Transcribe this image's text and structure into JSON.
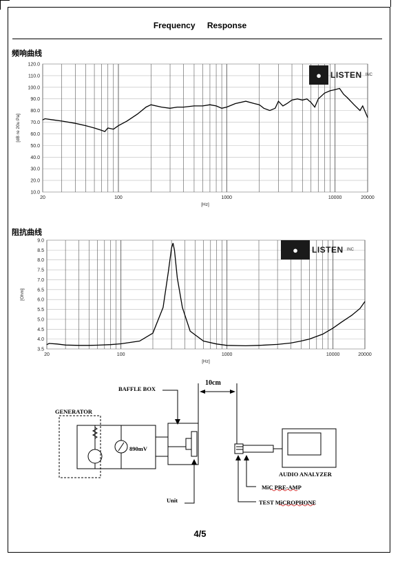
{
  "header": {
    "title": "Frequency Response"
  },
  "freq_section": {
    "label": "频响曲线"
  },
  "imp_section": {
    "label": "阻抗曲线"
  },
  "logo": {
    "name": "LISTEN",
    "suffix": "INC",
    "icon": "listener-head-icon"
  },
  "diagram": {
    "distance": "10cm",
    "baffle_box": "BAFFLE BOX",
    "generator": "GENERATOR",
    "voltage": "890mV",
    "unit": "Unit",
    "audio_analyzer": "AUDIO ANALYZER",
    "mic_preamp": "MiC PRE-AMP",
    "test_mic": "TEST MiCROPHONE"
  },
  "footer": {
    "page": "4/5"
  },
  "chart_data": [
    {
      "type": "line",
      "title": "",
      "xlabel": "[Hz]",
      "ylabel": "[dB re 20u Pa]",
      "xscale": "log",
      "xlim": [
        20,
        20000
      ],
      "ylim": [
        10,
        120
      ],
      "grid": true,
      "x_ticks": [
        "20",
        "100",
        "1000",
        "10000",
        "20000"
      ],
      "y_ticks": [
        "120.0",
        "110.0",
        "100.0",
        "90.0",
        "80.0",
        "70.0",
        "60.0",
        "50.0",
        "40.0",
        "30.0",
        "20.0",
        "10.0"
      ],
      "series": [
        {
          "x": [
            20,
            21,
            25,
            30,
            40,
            50,
            60,
            70,
            75,
            80,
            90,
            100,
            120,
            150,
            180,
            200,
            250,
            300,
            350,
            400,
            500,
            600,
            700,
            800,
            900,
            1000,
            1200,
            1500,
            1800,
            2000,
            2200,
            2500,
            2800,
            3000,
            3300,
            3600,
            4000,
            4500,
            5000,
            5500,
            6000,
            6500,
            7000,
            8000,
            9000,
            10000,
            11000,
            12000,
            13000,
            15000,
            17000,
            18000,
            20000
          ],
          "y": [
            72,
            73,
            72,
            71,
            69,
            67,
            65,
            63,
            62,
            65,
            64,
            67,
            71,
            77,
            83,
            85,
            83,
            82,
            83,
            83,
            84,
            84,
            85,
            84,
            82,
            83,
            86,
            88,
            86,
            85,
            82,
            80,
            82,
            88,
            84,
            86,
            89,
            90,
            89,
            90,
            87,
            83,
            90,
            95,
            97,
            98,
            99,
            94,
            91,
            85,
            80,
            84,
            74
          ]
        }
      ]
    },
    {
      "type": "line",
      "title": "",
      "xlabel": "[Hz]",
      "ylabel": "[Ohm]",
      "xscale": "log",
      "xlim": [
        20,
        20000
      ],
      "ylim": [
        3.5,
        9.0
      ],
      "grid": true,
      "x_ticks": [
        "20",
        "100",
        "1000",
        "10000",
        "20000"
      ],
      "y_ticks": [
        "9.0",
        "8.5",
        "8.0",
        "7.5",
        "7.0",
        "6.5",
        "6.0",
        "5.5",
        "5.0",
        "4.5",
        "4.0",
        "3.5"
      ],
      "series": [
        {
          "x": [
            20,
            21,
            25,
            30,
            40,
            50,
            60,
            80,
            100,
            150,
            200,
            250,
            280,
            300,
            310,
            320,
            340,
            380,
            450,
            600,
            800,
            1000,
            1500,
            2000,
            3000,
            4000,
            5000,
            6000,
            8000,
            10000,
            12000,
            15000,
            18000,
            20000
          ],
          "y": [
            3.72,
            3.78,
            3.75,
            3.7,
            3.68,
            3.68,
            3.69,
            3.72,
            3.76,
            3.9,
            4.3,
            5.6,
            7.4,
            8.6,
            8.85,
            8.5,
            7.1,
            5.6,
            4.4,
            3.9,
            3.75,
            3.68,
            3.66,
            3.68,
            3.73,
            3.8,
            3.9,
            4.0,
            4.25,
            4.55,
            4.85,
            5.2,
            5.55,
            5.9
          ]
        }
      ]
    }
  ]
}
